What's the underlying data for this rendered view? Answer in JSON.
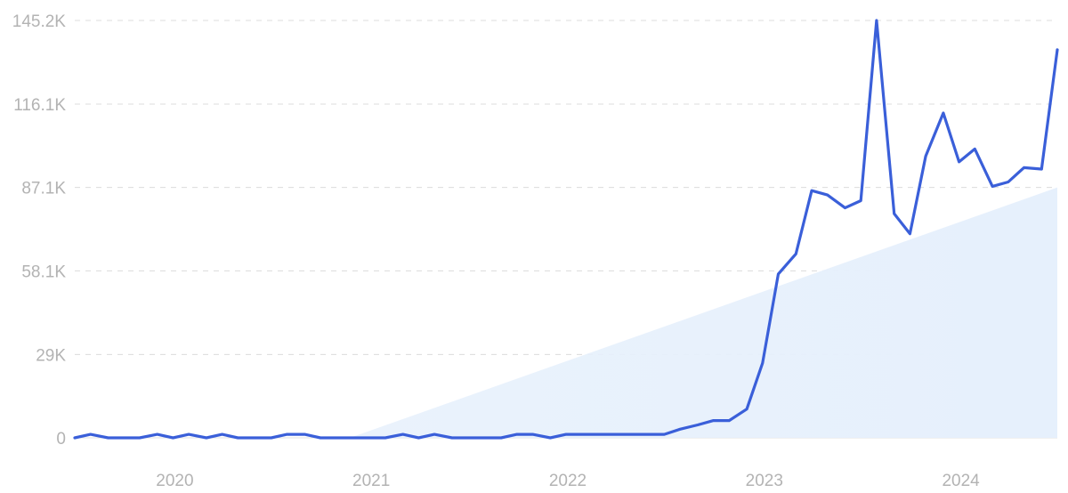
{
  "chart_data": {
    "type": "line",
    "title": "",
    "xlabel": "",
    "ylabel": "",
    "grid": true,
    "legend": "none",
    "y_ticks": [
      "0",
      "29K",
      "58.1K",
      "87.1K",
      "116.1K",
      "145.2K"
    ],
    "y_tick_values": [
      0,
      29000,
      58100,
      87100,
      116100,
      145200
    ],
    "ylim": [
      0,
      145200
    ],
    "x_ticks": [
      "2020",
      "2021",
      "2022",
      "2023",
      "2024"
    ],
    "x_tick_values": [
      2020.0,
      2021.0,
      2022.0,
      2023.0,
      2024.0
    ],
    "xlim": [
      2019.5,
      2024.5
    ],
    "colors": {
      "line": "#3a5fd9",
      "trend_fill": "#e6f0fc"
    },
    "series": [
      {
        "kind": "line",
        "x": [
          2019.5,
          2019.58,
          2019.67,
          2019.75,
          2019.83,
          2019.92,
          2020.0,
          2020.08,
          2020.17,
          2020.25,
          2020.33,
          2020.42,
          2020.5,
          2020.58,
          2020.67,
          2020.75,
          2020.83,
          2020.92,
          2021.0,
          2021.08,
          2021.17,
          2021.25,
          2021.33,
          2021.42,
          2021.5,
          2021.58,
          2021.67,
          2021.75,
          2021.83,
          2021.92,
          2022.0,
          2022.08,
          2022.17,
          2022.25,
          2022.33,
          2022.42,
          2022.5,
          2022.58,
          2022.67,
          2022.75,
          2022.83,
          2022.92,
          2023.0,
          2023.08,
          2023.17,
          2023.25,
          2023.33,
          2023.42,
          2023.5,
          2023.58,
          2023.67,
          2023.75,
          2023.83,
          2023.92,
          2024.0,
          2024.08,
          2024.17,
          2024.25,
          2024.33,
          2024.42,
          2024.5
        ],
        "values": [
          0,
          1200,
          0,
          0,
          0,
          1200,
          0,
          1200,
          0,
          1200,
          0,
          0,
          0,
          1200,
          1200,
          0,
          0,
          0,
          0,
          0,
          1200,
          0,
          1200,
          0,
          0,
          0,
          0,
          1200,
          1200,
          0,
          1200,
          1200,
          1200,
          1200,
          1200,
          1200,
          1200,
          3000,
          4500,
          6000,
          6000,
          10000,
          26000,
          57000,
          64000,
          86000,
          84500,
          80000,
          82500,
          145200,
          78000,
          71000,
          98000,
          113000,
          96000,
          100500,
          87500,
          89000,
          94000,
          93500,
          135000
        ]
      },
      {
        "kind": "trend-area",
        "x": [
          2020.9,
          2024.5
        ],
        "values": [
          0,
          87100
        ]
      }
    ]
  }
}
